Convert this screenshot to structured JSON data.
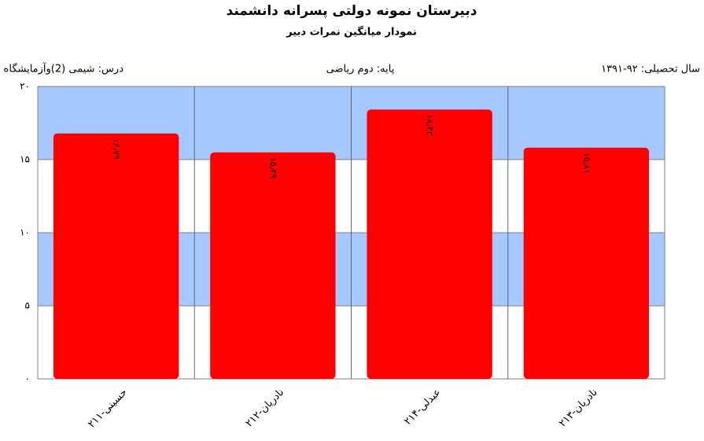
{
  "chart_data": {
    "type": "bar",
    "title": "دبیرستان  نمونه دولتی پسرانه دانشمند",
    "subtitle": "نمودار میانگین نمرات دبیر",
    "info": {
      "year": "سال تحصیلی: ۹۲-۱۳۹۱",
      "grade": "پایه: دوم ریاضی",
      "course": "درس: شیمی  (2)وآزمایشگاه"
    },
    "categories": [
      "حسینی-۲۱۱",
      "نادریان-۲۱۲",
      "عبدلی-۲۱۴",
      "نادریان-۲۱۳"
    ],
    "values": [
      16.79,
      15.49,
      18.42,
      15.81
    ],
    "value_labels": [
      "۱۶٫۷۹",
      "۱۵٫۴۹",
      "۱۸٫۴۲",
      "۱۵٫۸۱"
    ],
    "color": "#ff0000",
    "ylim": [
      0,
      20
    ],
    "yticks": [
      {
        "value": 0,
        "label": "۰"
      },
      {
        "value": 5,
        "label": "۵"
      },
      {
        "value": 10,
        "label": "۱۰"
      },
      {
        "value": 15,
        "label": "۱۵"
      },
      {
        "value": 20,
        "label": "۲۰"
      }
    ],
    "band_colors": [
      "#a4c8ff",
      "#ffffff"
    ],
    "grid": true
  }
}
